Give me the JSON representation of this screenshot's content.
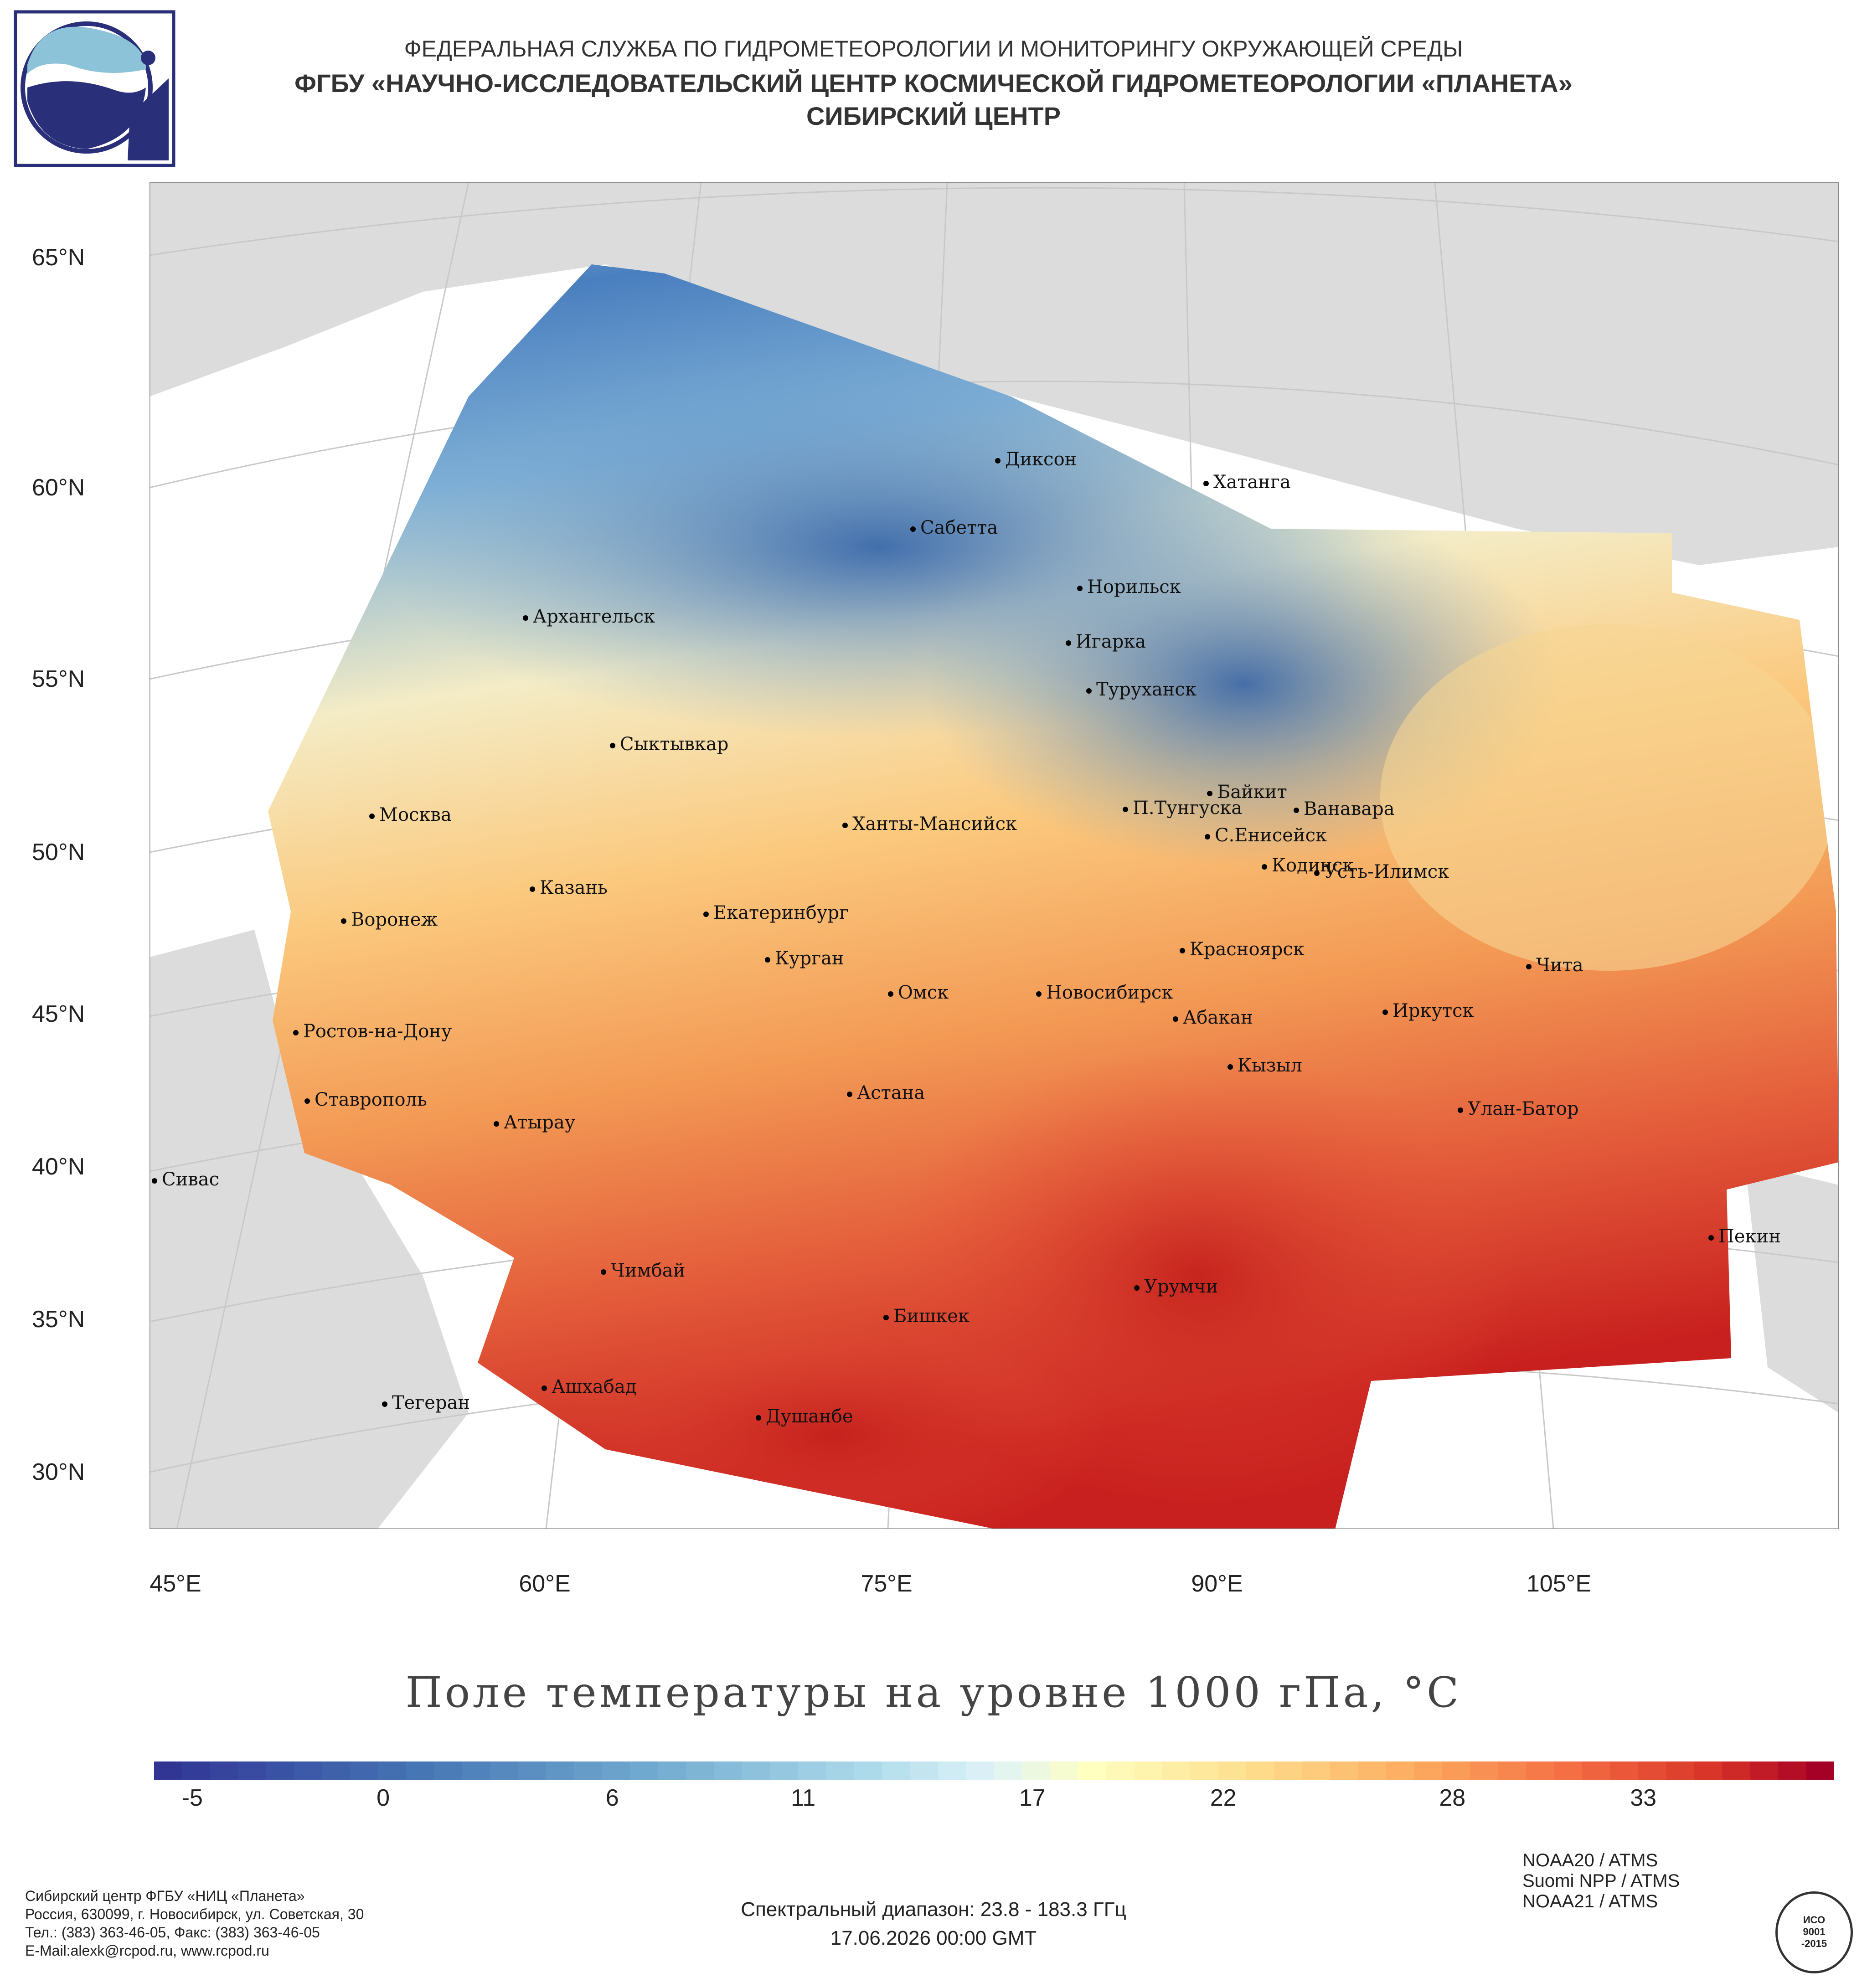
{
  "header": {
    "line1": "ФЕДЕРАЛЬНАЯ СЛУЖБА ПО ГИДРОМЕТЕОРОЛОГИИ И МОНИТОРИНГУ ОКРУЖАЮЩЕЙ СРЕДЫ",
    "line2": "ФГБУ «НАУЧНО-ИССЛЕДОВАТЕЛЬСКИЙ ЦЕНТР КОСМИЧЕСКОЙ ГИДРОМЕТЕОРОЛОГИИ «ПЛАНЕТА»",
    "line3": "СИБИРСКИЙ ЦЕНТР"
  },
  "map": {
    "lat_labels": [
      "65°N",
      "60°N",
      "55°N",
      "50°N",
      "45°N",
      "40°N",
      "35°N",
      "30°N"
    ],
    "lon_labels": [
      "45°E",
      "60°E",
      "75°E",
      "90°E",
      "105°E"
    ],
    "cities": [
      "Диксон",
      "Хатанга",
      "Сабетта",
      "Норильск",
      "Архангельск",
      "Игарка",
      "Туруханск",
      "Сыктывкар",
      "Байкит",
      "Москва",
      "Ханты-Мансийск",
      "П.Тунгуска",
      "Ванавара",
      "С.Енисейск",
      "Кодинск",
      "Усть-Илимск",
      "Казань",
      "Екатеринбург",
      "Воронеж",
      "Красноярск",
      "Курган",
      "Чита",
      "Омск",
      "Новосибирск",
      "Ростов-на-Дону",
      "Абакан",
      "Иркутск",
      "Кызыл",
      "Астана",
      "Ставрополь",
      "Улан-Батор",
      "Атырау",
      "Сивас",
      "Пекин",
      "Чимбай",
      "Урумчи",
      "Бишкек",
      "Ашхабад",
      "Тегеран",
      "Душанбе"
    ],
    "colors": {
      "land": "#dcdcdc",
      "cold": "#2f4fa0",
      "mid": "#f0f0d8",
      "hot": "#c8201e"
    }
  },
  "chart_data": {
    "type": "heatmap",
    "title": "Поле температуры на уровне 1000 гПа, °C",
    "colorbar_ticks": [
      -5,
      0,
      6,
      11,
      17,
      22,
      28,
      33
    ],
    "colorbar_range": [
      -6,
      38
    ],
    "colormap": "RdYlBu_r"
  },
  "footer": {
    "org": [
      "Сибирский центр ФГБУ «НИЦ «Планета»",
      "Россия, 630099, г. Новосибирск, ул. Советская, 30",
      "Тел.: (383) 363-46-05, Факс: (383) 363-46-05",
      "E-Mail:alexk@rcpod.ru, www.rcpod.ru"
    ],
    "spectral": "Спектральный диапазон: 23.8 - 183.3 ГГц",
    "datetime": "17.06.2026 00:00 GMT",
    "instruments": [
      "NOAA20 / ATMS",
      "Suomi NPP / ATMS",
      "NOAA21 / ATMS"
    ],
    "iso": [
      "ИСО",
      "9001",
      "-2015"
    ]
  }
}
